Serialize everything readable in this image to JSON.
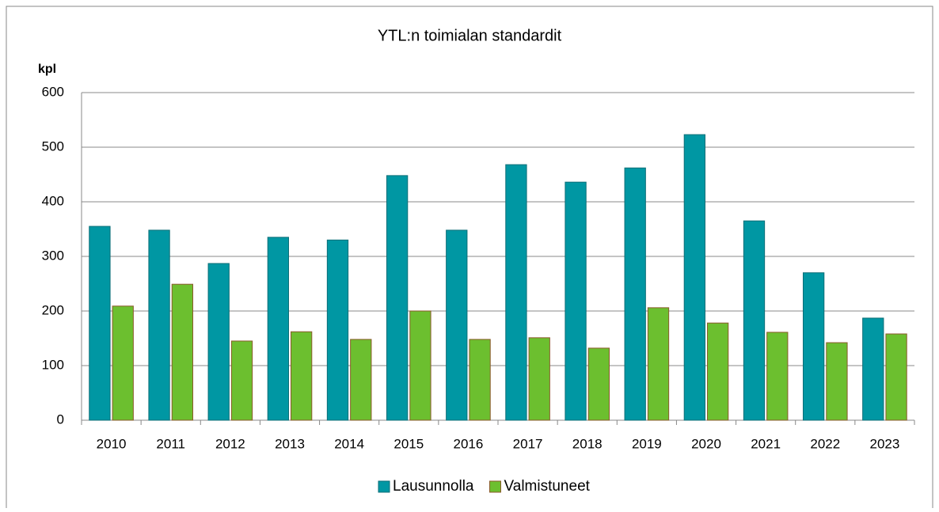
{
  "chart_data": {
    "type": "bar",
    "title": "YTL:n toimialan standardit",
    "y_label": "kpl",
    "categories": [
      "2010",
      "2011",
      "2012",
      "2013",
      "2014",
      "2015",
      "2016",
      "2017",
      "2018",
      "2019",
      "2020",
      "2021",
      "2022",
      "2023"
    ],
    "series": [
      {
        "name": "Lausunnolla",
        "color": "#0097a3",
        "values": [
          355,
          348,
          287,
          335,
          330,
          448,
          348,
          468,
          436,
          462,
          523,
          365,
          270,
          187
        ]
      },
      {
        "name": "Valmistuneet",
        "color": "#6cbf2f",
        "values": [
          209,
          249,
          145,
          162,
          148,
          200,
          148,
          151,
          132,
          206,
          178,
          161,
          142,
          158
        ]
      }
    ],
    "ylim": [
      0,
      600
    ],
    "yticks": [
      0,
      100,
      200,
      300,
      400,
      500,
      600
    ],
    "grid": true,
    "legend": "bottom"
  }
}
